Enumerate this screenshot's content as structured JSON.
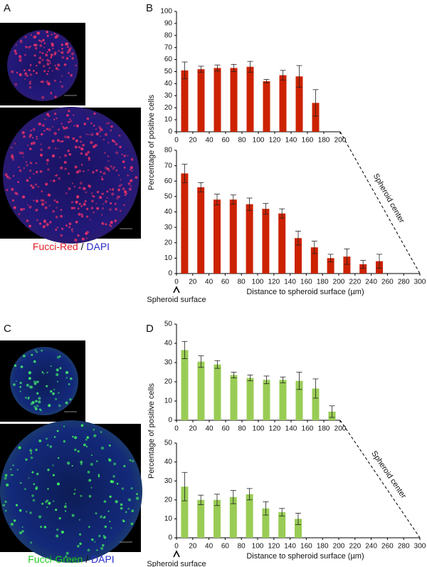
{
  "panels": {
    "a": "A",
    "b": "B",
    "c": "C",
    "d": "D"
  },
  "captions": [
    {
      "marker": "Fucci-Red",
      "separator": "/",
      "stain": "DAPI"
    },
    {
      "marker": "Fucci-Green",
      "separator": "/",
      "stain": "DAPI"
    }
  ],
  "chart_data": [
    {
      "type": "bar",
      "ylabel": "Percentage of positive cells",
      "color": "#cc2200",
      "x": [
        10,
        30,
        50,
        70,
        90,
        110,
        130,
        150,
        170
      ],
      "values": [
        51,
        52,
        53,
        53,
        54,
        42,
        47,
        46,
        24
      ],
      "errors": [
        7,
        2.5,
        2.5,
        3,
        4.5,
        1.5,
        4,
        9,
        11
      ],
      "xlim": [
        0,
        200
      ],
      "xticks": [
        0,
        20,
        40,
        60,
        80,
        100,
        120,
        140,
        160,
        180,
        200
      ],
      "ylim": [
        0,
        100
      ],
      "yticks": [
        0,
        10,
        20,
        30,
        40,
        50,
        60,
        70,
        80,
        90,
        100
      ]
    },
    {
      "type": "bar",
      "xlabel": "Distance to spheroid surface (µm)",
      "color": "#cc2200",
      "annotations": [
        "Spheroid surface",
        "Spheroid center"
      ],
      "x": [
        10,
        30,
        50,
        70,
        90,
        110,
        130,
        150,
        170,
        190,
        210,
        230,
        250
      ],
      "values": [
        65,
        56,
        48,
        48,
        45,
        42,
        39,
        23,
        17,
        10,
        11,
        6,
        8
      ],
      "errors": [
        6,
        3,
        3.5,
        3,
        4,
        3.5,
        3,
        4.5,
        4,
        2.5,
        5,
        2.5,
        4.5
      ],
      "xlim": [
        0,
        300
      ],
      "xticks": [
        0,
        20,
        40,
        60,
        80,
        100,
        120,
        140,
        160,
        180,
        200,
        220,
        240,
        260,
        280,
        300
      ],
      "ylim": [
        0,
        80
      ],
      "yticks": [
        0,
        10,
        20,
        30,
        40,
        50,
        60,
        70,
        80
      ]
    },
    {
      "type": "bar",
      "ylabel": "Percentage of positive cells",
      "color": "#99cc55",
      "x": [
        10,
        30,
        50,
        70,
        90,
        110,
        130,
        150,
        170,
        190
      ],
      "values": [
        36.5,
        30.5,
        29,
        23.5,
        22,
        21,
        21,
        20.5,
        16.5,
        4.5
      ],
      "errors": [
        4.5,
        3,
        2,
        1.5,
        1.5,
        2,
        1.5,
        4.5,
        5,
        3
      ],
      "xlim": [
        0,
        200
      ],
      "xticks": [
        0,
        20,
        40,
        60,
        80,
        100,
        120,
        140,
        160,
        180,
        200
      ],
      "ylim": [
        0,
        50
      ],
      "yticks": [
        0,
        10,
        20,
        30,
        40,
        50
      ]
    },
    {
      "type": "bar",
      "xlabel": "Distance to spheroid surface (µm)",
      "color": "#99cc55",
      "annotations": [
        "Spheroid surface",
        "Spheroid center"
      ],
      "x": [
        10,
        30,
        50,
        70,
        90,
        110,
        130,
        150
      ],
      "values": [
        27,
        20,
        20,
        21.5,
        23,
        15.5,
        13.5,
        10
      ],
      "errors": [
        7.5,
        2.5,
        3,
        3.5,
        3,
        3.5,
        2,
        3
      ],
      "xlim": [
        0,
        300
      ],
      "xticks": [
        0,
        20,
        40,
        60,
        80,
        100,
        120,
        140,
        160,
        180,
        200,
        220,
        240,
        260,
        280,
        300
      ],
      "ylim": [
        0,
        50
      ],
      "yticks": [
        0,
        10,
        20,
        30,
        40,
        50
      ]
    }
  ]
}
